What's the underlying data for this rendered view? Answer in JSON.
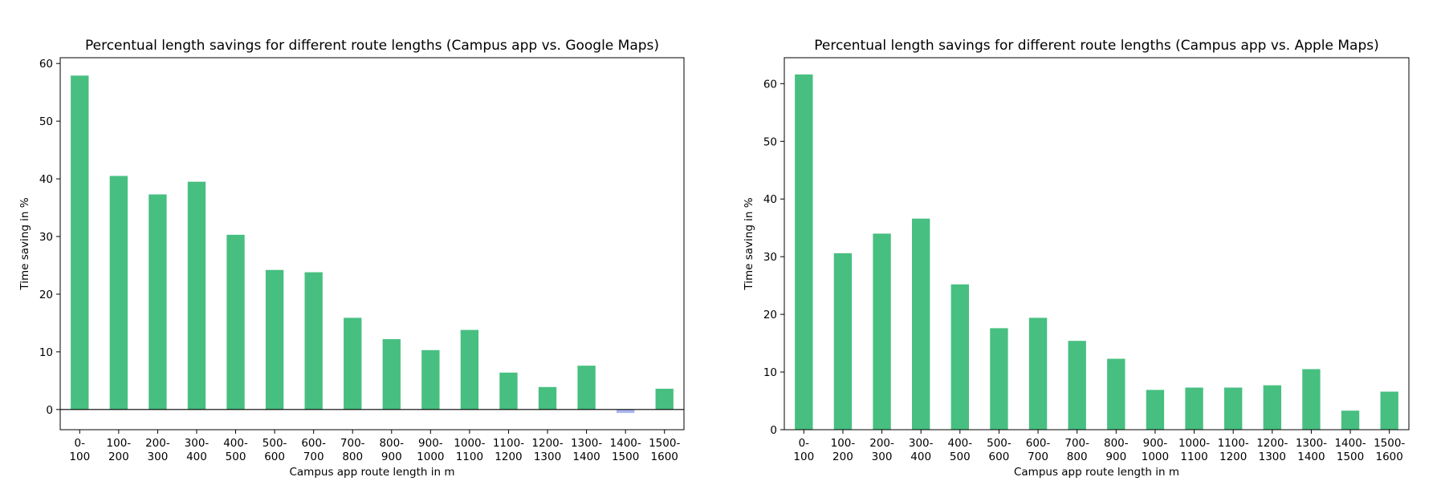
{
  "chart_data": [
    {
      "type": "bar",
      "title": "Percentual length savings for different route lengths (Campus app vs. Google Maps)",
      "xlabel": "Campus app route length in m",
      "ylabel": "Time saving in %",
      "ylim": [
        -3.5,
        61
      ],
      "yticks": [
        0,
        10,
        20,
        30,
        40,
        50,
        60
      ],
      "zero_line": true,
      "grid": false,
      "categories": [
        [
          "0-",
          "100"
        ],
        [
          "100-",
          "200"
        ],
        [
          "200-",
          "300"
        ],
        [
          "300-",
          "400"
        ],
        [
          "400-",
          "500"
        ],
        [
          "500-",
          "600"
        ],
        [
          "600-",
          "700"
        ],
        [
          "700-",
          "800"
        ],
        [
          "800-",
          "900"
        ],
        [
          "900-",
          "1000"
        ],
        [
          "1000-",
          "1100"
        ],
        [
          "1100-",
          "1200"
        ],
        [
          "1200-",
          "1300"
        ],
        [
          "1300-",
          "1400"
        ],
        [
          "1400-",
          "1500"
        ],
        [
          "1500-",
          "1600"
        ]
      ],
      "values": [
        57.9,
        40.5,
        37.3,
        39.5,
        30.3,
        24.2,
        23.8,
        15.9,
        12.2,
        10.3,
        13.8,
        6.4,
        3.9,
        7.6,
        -0.6,
        3.6
      ],
      "colors": {
        "positive": "#47bf80",
        "negative": "#aab5ee"
      }
    },
    {
      "type": "bar",
      "title": "Percentual length savings for different route lengths (Campus app vs. Apple Maps)",
      "xlabel": "Campus app route length in m",
      "ylabel": "Time saving in %",
      "ylim": [
        0,
        64.5
      ],
      "yticks": [
        0,
        10,
        20,
        30,
        40,
        50,
        60
      ],
      "zero_line": false,
      "grid": false,
      "categories": [
        [
          "0-",
          "100"
        ],
        [
          "100-",
          "200"
        ],
        [
          "200-",
          "300"
        ],
        [
          "300-",
          "400"
        ],
        [
          "400-",
          "500"
        ],
        [
          "500-",
          "600"
        ],
        [
          "600-",
          "700"
        ],
        [
          "700-",
          "800"
        ],
        [
          "800-",
          "900"
        ],
        [
          "900-",
          "1000"
        ],
        [
          "1000-",
          "1100"
        ],
        [
          "1100-",
          "1200"
        ],
        [
          "1200-",
          "1300"
        ],
        [
          "1300-",
          "1400"
        ],
        [
          "1400-",
          "1500"
        ],
        [
          "1500-",
          "1600"
        ]
      ],
      "values": [
        61.6,
        30.6,
        34.0,
        36.6,
        25.2,
        17.6,
        19.4,
        15.4,
        12.3,
        6.9,
        7.3,
        7.3,
        7.7,
        10.5,
        3.3,
        6.6
      ],
      "colors": {
        "positive": "#47bf80",
        "negative": "#aab5ee"
      }
    }
  ]
}
